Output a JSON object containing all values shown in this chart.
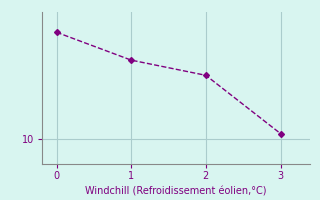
{
  "x": [
    0,
    1,
    2,
    3
  ],
  "y": [
    14.2,
    13.1,
    12.5,
    10.2
  ],
  "line_color": "#800080",
  "background_color": "#d8f5f0",
  "xlabel": "Windchill (Refroidissement éolien,°C)",
  "xlabel_fontsize": 7,
  "xlim": [
    -0.2,
    3.4
  ],
  "ylim": [
    9.0,
    15.0
  ],
  "yticks": [
    10
  ],
  "xticks": [
    0,
    1,
    2,
    3
  ],
  "grid_color": "#aacccc",
  "tick_color": "#800080",
  "label_color": "#800080",
  "spine_color": "#888888",
  "marker": "D",
  "markersize": 3,
  "linewidth": 1,
  "linestyle": "--"
}
